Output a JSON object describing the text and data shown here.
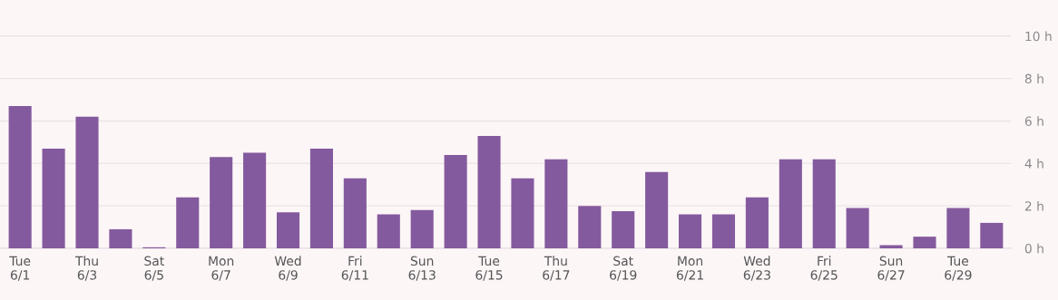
{
  "chart_data": {
    "type": "bar",
    "categories": [
      "Tue\n6/1",
      null,
      "Thu\n6/3",
      null,
      "Sat\n6/5",
      null,
      "Mon\n6/7",
      null,
      "Wed\n6/9",
      null,
      "Fri\n6/11",
      null,
      "Sun\n6/13",
      null,
      "Tue\n6/15",
      null,
      "Thu\n6/17",
      null,
      "Sat\n6/19",
      null,
      "Mon\n6/21",
      null,
      "Wed\n6/23",
      null,
      "Fri\n6/25",
      null,
      "Sun\n6/27",
      null,
      "Tue\n6/29",
      null
    ],
    "values": [
      6.7,
      4.7,
      6.2,
      0.9,
      0.05,
      2.4,
      4.3,
      4.5,
      1.7,
      4.7,
      3.3,
      1.6,
      1.8,
      4.4,
      5.3,
      3.3,
      4.2,
      2.0,
      1.75,
      3.6,
      1.6,
      1.6,
      2.4,
      4.2,
      4.2,
      1.9,
      0.15,
      0.55,
      1.9,
      1.2
    ],
    "color": "#845a9e",
    "ylim": [
      0,
      11.7
    ],
    "yticks": [
      {
        "value": 0,
        "label": "0 h"
      },
      {
        "value": 2,
        "label": "2 h"
      },
      {
        "value": 4,
        "label": "4 h"
      },
      {
        "value": 6,
        "label": "6 h"
      },
      {
        "value": 8,
        "label": "8 h"
      },
      {
        "value": 10,
        "label": "10 h"
      }
    ],
    "grid": "y"
  }
}
